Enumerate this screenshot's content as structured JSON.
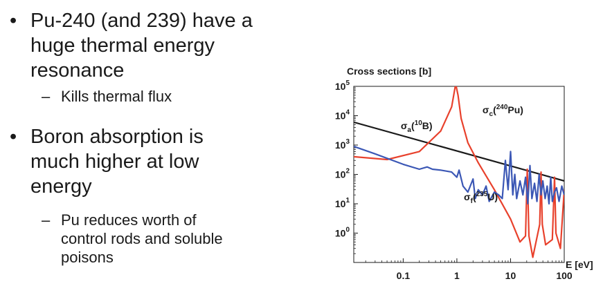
{
  "slide": {
    "bullets": [
      {
        "lines": [
          "Pu-240 (and 239) have a",
          "huge thermal energy",
          "resonance"
        ],
        "sub": [
          {
            "lines": [
              "Kills thermal flux"
            ]
          }
        ]
      },
      {
        "lines": [
          "Boron absorption is",
          "much higher at low",
          "energy"
        ],
        "sub": [
          {
            "lines": [
              "Pu reduces worth of",
              "control rods and soluble",
              "poisons"
            ]
          }
        ]
      }
    ]
  },
  "chart_data": {
    "type": "line",
    "title": "Cross sections [b]",
    "xlabel": "E [eV]",
    "ylabel": "",
    "x_scale": "log",
    "y_scale": "log",
    "xlim": [
      0.012,
      100
    ],
    "ylim": [
      0.1,
      100000
    ],
    "x_ticks": [
      "0.1",
      "1",
      "10",
      "100"
    ],
    "y_ticks": [
      "10^0",
      "10^1",
      "10^2",
      "10^3",
      "10^4",
      "10^5"
    ],
    "series": [
      {
        "name_base": "σ",
        "name_sub": "a",
        "name_sup": "10",
        "name_tail": "B",
        "color": "#1a1a1a",
        "x": [
          0.012,
          100
        ],
        "y": [
          6000,
          60
        ]
      },
      {
        "name_base": "σ",
        "name_sub": "c",
        "name_sup": "240",
        "name_tail": "Pu",
        "color": "#e8412c",
        "x": [
          0.012,
          0.05,
          0.2,
          0.5,
          0.8,
          0.95,
          1.05,
          1.2,
          1.6,
          2.5,
          5,
          10,
          15,
          19,
          20.5,
          22,
          26,
          35,
          37,
          39,
          45,
          60,
          66,
          70,
          85,
          100
        ],
        "y": [
          400,
          320,
          600,
          3000,
          20000,
          120000,
          50000,
          8000,
          1200,
          250,
          30,
          3,
          0.5,
          0.8,
          150,
          0.8,
          0.15,
          2,
          120,
          2,
          0.4,
          0.6,
          80,
          1,
          0.3,
          30
        ]
      },
      {
        "name_base": "σ",
        "name_sub": "f",
        "name_sup": "235",
        "name_tail": "U",
        "color": "#3b57b5",
        "x": [
          0.012,
          0.03,
          0.1,
          0.2,
          0.28,
          0.35,
          0.5,
          0.8,
          1.0,
          1.1,
          1.3,
          1.6,
          2,
          2.2,
          2.5,
          3,
          3.5,
          4,
          5,
          6,
          7,
          8,
          9,
          10,
          11,
          12,
          13,
          15,
          17,
          19,
          21,
          23,
          25,
          28,
          31,
          34,
          37,
          40,
          44,
          48,
          52,
          56,
          60,
          66,
          72,
          80,
          90,
          100
        ],
        "y": [
          900,
          500,
          220,
          150,
          180,
          150,
          140,
          120,
          80,
          140,
          40,
          25,
          70,
          15,
          30,
          20,
          40,
          12,
          25,
          20,
          15,
          300,
          30,
          600,
          20,
          100,
          15,
          60,
          20,
          80,
          10,
          200,
          15,
          50,
          12,
          100,
          20,
          60,
          15,
          40,
          10,
          80,
          12,
          25,
          35,
          12,
          40,
          20
        ]
      }
    ]
  }
}
